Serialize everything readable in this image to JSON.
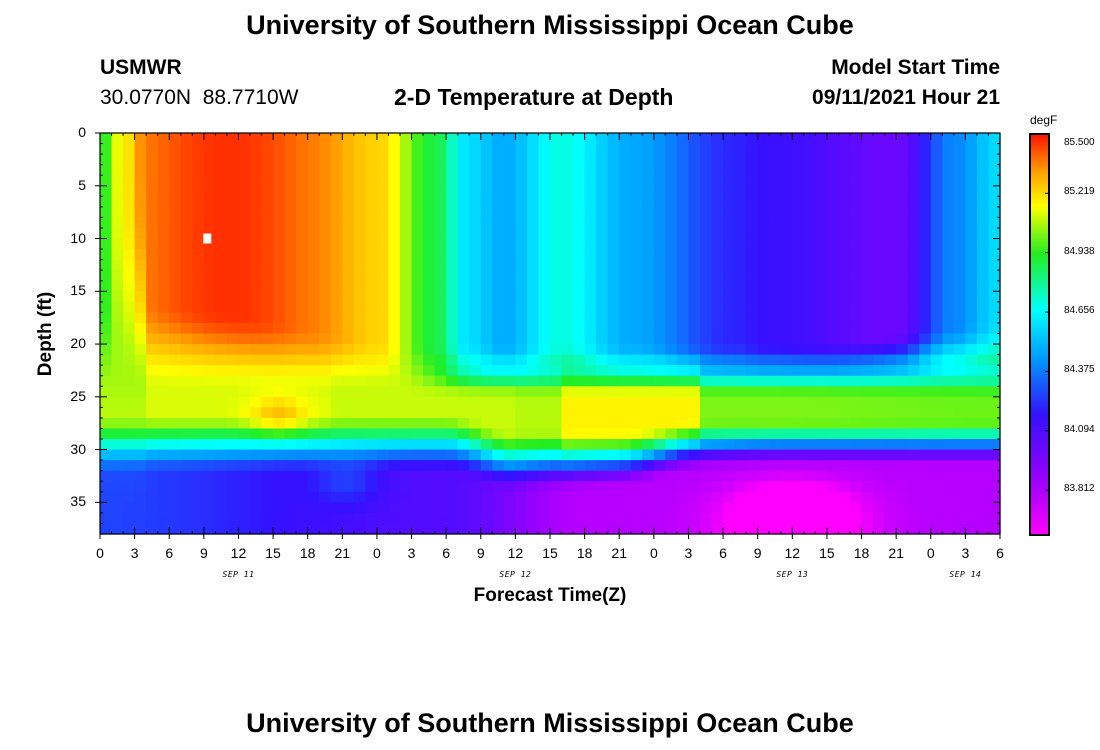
{
  "page": {
    "title": "University of Southern Mississippi Ocean Cube",
    "footer_title": "University of Southern Mississippi Ocean Cube"
  },
  "header": {
    "station": "USMWR",
    "coordinates": "30.0770N  88.7710W",
    "plot_title": "2-D Temperature at Depth",
    "model_label": "Model Start Time",
    "model_time": "09/11/2021 Hour 21"
  },
  "chart_data": {
    "type": "heatmap",
    "title": "2-D Temperature at Depth",
    "xlabel": "Forecast Time(Z)",
    "ylabel": "Depth (ft)",
    "x_hours_from_start": [
      0,
      78
    ],
    "ylim": [
      0,
      38
    ],
    "x_tick_labels": [
      "0",
      "3",
      "6",
      "9",
      "12",
      "15",
      "18",
      "21",
      "0",
      "3",
      "6",
      "9",
      "12",
      "15",
      "18",
      "21",
      "0",
      "3",
      "6",
      "9",
      "12",
      "15",
      "18",
      "21",
      "0",
      "3",
      "6"
    ],
    "date_labels": [
      {
        "label": "SEP 11",
        "hour": 12
      },
      {
        "label": "SEP 12",
        "hour": 36
      },
      {
        "label": "SEP 13",
        "hour": 60
      },
      {
        "label": "SEP 14",
        "hour": 75
      }
    ],
    "y_ticks": [
      0,
      5,
      10,
      15,
      20,
      25,
      30,
      35
    ],
    "colorbar": {
      "unit": "degF",
      "min": 83.6,
      "max": 85.5,
      "labels": [
        "85.500",
        "85.219",
        "84.938",
        "84.656",
        "84.375",
        "84.094",
        "83.812"
      ]
    },
    "annotation": {
      "marker": "max value",
      "hour": 9.3,
      "depth": 10
    }
  }
}
